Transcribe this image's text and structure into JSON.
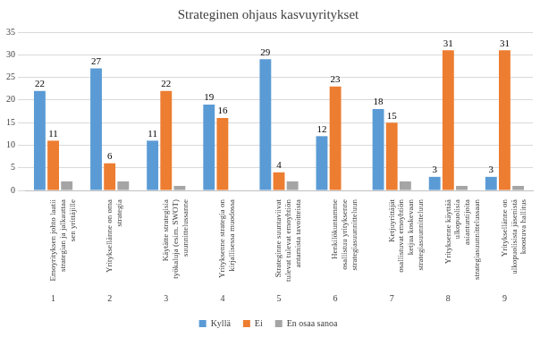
{
  "chart_data": {
    "type": "bar",
    "title": "Strateginen ohjaus kasvuyritykset",
    "categories": [
      "Emoyrityksen johto laatii strategian ja jalkauttaa sen yrittäjille",
      "Yrityksellänne on oma strategia",
      "Käytätte strategisia työkaluja (esim. SWOT) suunnittelussanne",
      "Yrityksenne strategia on kirjallisessa muodossa",
      "Strateginne suuntaviivat tulevat tulevat emoyhtiön antamista tavoitteista",
      "Henkilökuntamme osallistuu yrityksenne strategiasuunnitteluun",
      "Ketjuyrittäjät osallistuvat emoyhtiön ketjua koskevaan strategiasuunnitteluun",
      "Yrityksenne käyttää ulkopuolisia asiantuntijoita strategiasuunnittelussaan",
      "Yrityksellänne on ulkopuolisista jäsenistä koostuva hallitus"
    ],
    "category_numbers": [
      "1",
      "2",
      "3",
      "4",
      "5",
      "6",
      "7",
      "8",
      "9"
    ],
    "series": [
      {
        "name": "Kyllä",
        "color": "#5b9bd5",
        "values": [
          22,
          27,
          11,
          19,
          29,
          12,
          18,
          3,
          3
        ],
        "data_labels": true
      },
      {
        "name": "Ei",
        "color": "#ed7d31",
        "values": [
          11,
          6,
          22,
          16,
          4,
          23,
          15,
          31,
          31
        ],
        "data_labels": true
      },
      {
        "name": "En osaa sanoa",
        "color": "#a5a5a5",
        "values": [
          2,
          2,
          1,
          0,
          2,
          0,
          2,
          1,
          1
        ],
        "data_labels": false
      }
    ],
    "ylim": [
      0,
      35
    ],
    "yticks": [
      0,
      5,
      10,
      15,
      20,
      25,
      30,
      35
    ],
    "grid": true,
    "legend": "bottom"
  }
}
